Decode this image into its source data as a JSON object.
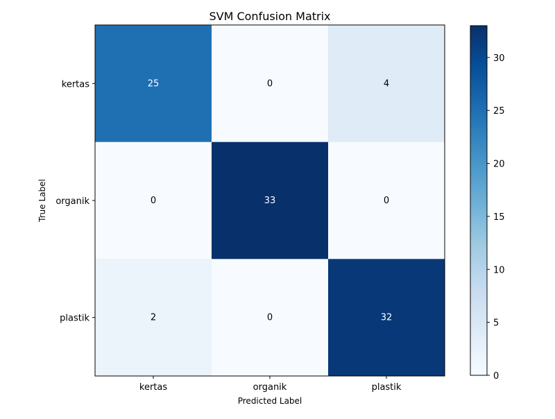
{
  "chart_data": {
    "type": "heatmap",
    "title": "SVM Confusion Matrix",
    "xlabel": "Predicted Label",
    "ylabel": "True Label",
    "x_categories": [
      "kertas",
      "organik",
      "plastik"
    ],
    "y_categories": [
      "kertas",
      "organik",
      "plastik"
    ],
    "values": [
      [
        25,
        0,
        4
      ],
      [
        0,
        33,
        0
      ],
      [
        2,
        0,
        32
      ]
    ],
    "colormap": "Blues",
    "colorbar": {
      "min": 0,
      "max": 33,
      "ticks": [
        0,
        5,
        10,
        15,
        20,
        25,
        30
      ]
    },
    "cell_text_threshold": 16.5,
    "text_colors": {
      "light": "#ffffff",
      "dark": "#000000"
    },
    "grid": false
  }
}
